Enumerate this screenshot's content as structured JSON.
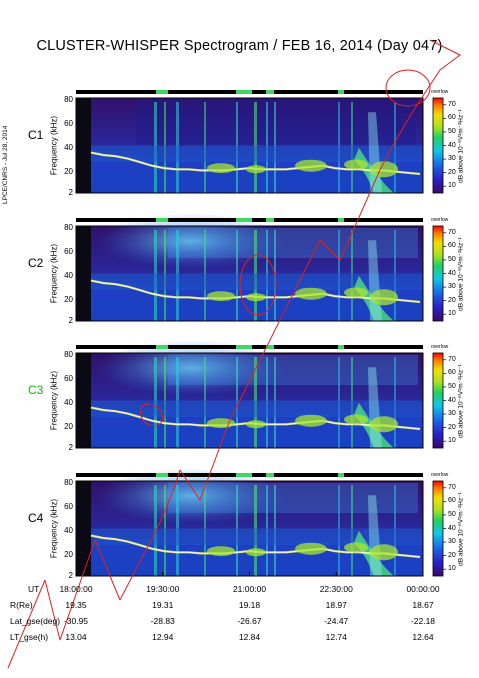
{
  "title": "CLUSTER-WHISPER Spectrogram / FEB 16, 2014 (Day 047)",
  "side_credit": "LPCE/CNRS - Jul 28, 2014",
  "chart_data": {
    "type": "heatmap",
    "panels": [
      {
        "name": "C1",
        "label_color": "#000000"
      },
      {
        "name": "C2",
        "label_color": "#000000"
      },
      {
        "name": "C3",
        "label_color": "#00c000"
      },
      {
        "name": "C4",
        "label_color": "#000000"
      }
    ],
    "ylabel": "Frequency (kHz)",
    "yticks": [
      "2",
      "20",
      "40",
      "60",
      "80"
    ],
    "ylim": [
      2,
      82
    ],
    "colorbar": {
      "label": "dB above 10⁻⁸V²m⁻²Hz⁻¹",
      "top_label": "overlow",
      "ticks": [
        "10",
        "20",
        "30",
        "40",
        "50",
        "60",
        "70"
      ],
      "range": [
        5,
        75
      ]
    },
    "x_ticks": [
      "18:00:00",
      "19:30:00",
      "21:00:00",
      "22:30:00",
      "00:00:00"
    ],
    "trace_khz": [
      36,
      34,
      33,
      31,
      28,
      25,
      23,
      22,
      22,
      21,
      21,
      21,
      22,
      23,
      22,
      22,
      22,
      23,
      24,
      25,
      23,
      22,
      22,
      21,
      21,
      20,
      19,
      18
    ],
    "ephemeris": [
      {
        "label": "UT",
        "values": [
          "18:00:00",
          "19:30:00",
          "21:00:00",
          "22:30:00",
          "00:00:00"
        ]
      },
      {
        "label": "R(Re)",
        "values": [
          "19.35",
          "19.31",
          "19.18",
          "18.97",
          "18.67"
        ]
      },
      {
        "label": "Lat_gse(deg)",
        "values": [
          "-30.95",
          "-28.83",
          "-26.67",
          "-24.47",
          "-22.18"
        ]
      },
      {
        "label": "LT_gse(h)",
        "values": [
          "13.04",
          "12.94",
          "12.84",
          "12.74",
          "12.64"
        ]
      }
    ]
  }
}
